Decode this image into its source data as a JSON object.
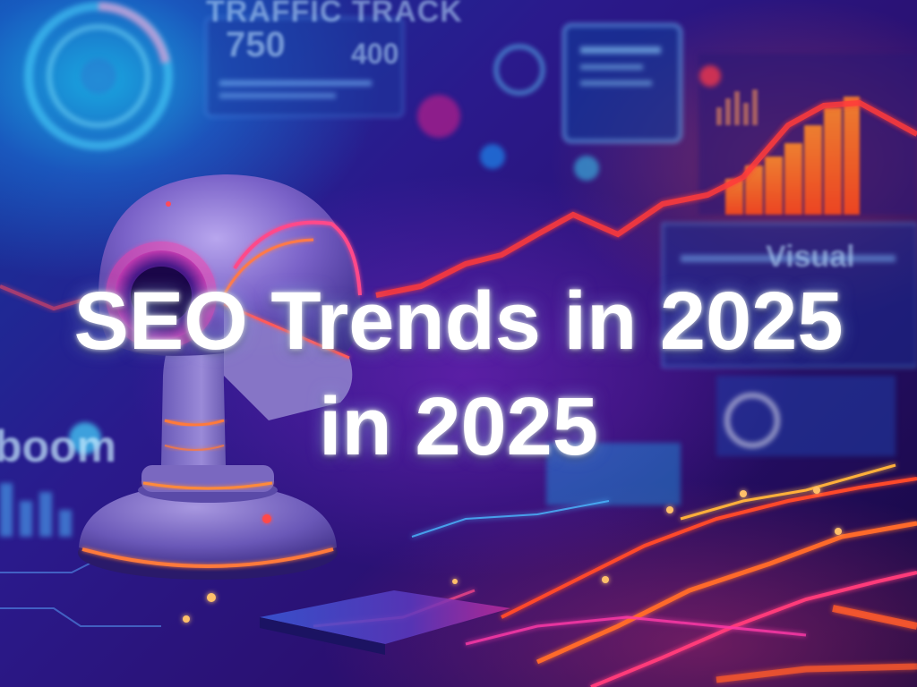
{
  "headline": {
    "line1": "SEO Trends in 2025",
    "line2": "in 2025"
  },
  "background_text": {
    "top_label": "TRAFFIC TRACK",
    "stat_a": "750",
    "stat_b": "400",
    "panel_label": "Visual",
    "side_label": "boom"
  },
  "colors": {
    "accent_orange": "#ff7a1a",
    "accent_red": "#ff3a3a",
    "accent_pink": "#ff3aa8",
    "accent_cyan": "#35d6ff",
    "bg_deep": "#1a0a5e"
  }
}
